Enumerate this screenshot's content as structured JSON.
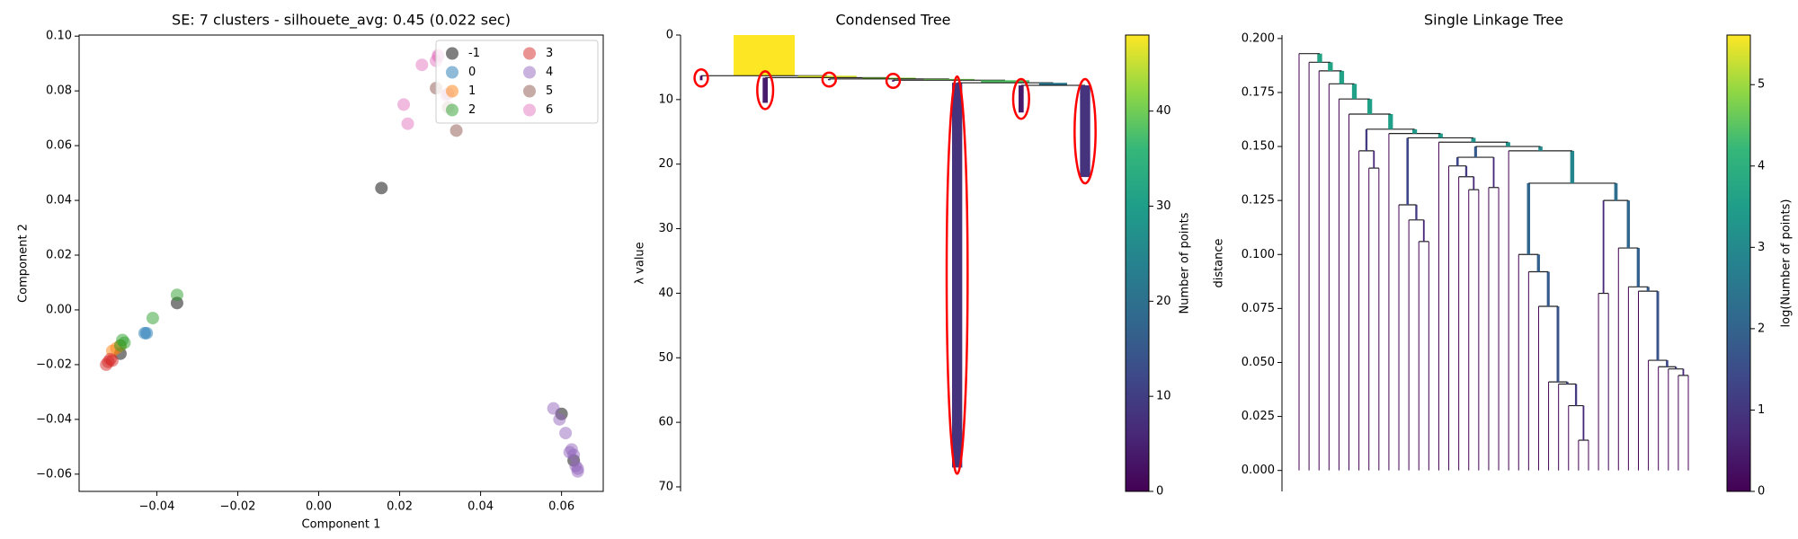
{
  "chart_data": [
    {
      "type": "scatter",
      "title": "SE: 7 clusters - silhouete_avg: 0.45 (0.022 sec)",
      "xlabel": "Component 1",
      "ylabel": "Component 2",
      "xlim": [
        -0.0592,
        0.0703
      ],
      "ylim": [
        -0.0663,
        0.1004
      ],
      "xticks": [
        {
          "value": -0.04,
          "label": "−0.04"
        },
        {
          "value": -0.02,
          "label": "−0.02"
        },
        {
          "value": 0,
          "label": "0.00"
        },
        {
          "value": 0.02,
          "label": "0.02"
        },
        {
          "value": 0.04,
          "label": "0.04"
        },
        {
          "value": 0.06,
          "label": "0.06"
        }
      ],
      "yticks": [
        {
          "value": -0.06,
          "label": "−0.06"
        },
        {
          "value": -0.04,
          "label": "−0.04"
        },
        {
          "value": -0.02,
          "label": "−0.02"
        },
        {
          "value": 0,
          "label": "0.00"
        },
        {
          "value": 0.02,
          "label": "0.02"
        },
        {
          "value": 0.04,
          "label": "0.04"
        },
        {
          "value": 0.06,
          "label": "0.06"
        },
        {
          "value": 0.08,
          "label": "0.08"
        },
        {
          "value": 0.1,
          "label": "0.10"
        }
      ],
      "legend": "upper right",
      "legend_columns": 2,
      "series": [
        {
          "name": "-1",
          "color": "#000000",
          "x": [
            0.0155,
            -0.035,
            0.06,
            0.063,
            -0.049
          ],
          "y": [
            0.0445,
            0.0025,
            -0.038,
            -0.055,
            -0.016
          ]
        },
        {
          "name": "0",
          "color": "#1f77b4",
          "x": [
            -0.043,
            -0.0425
          ],
          "y": [
            -0.0085,
            -0.0085
          ]
        },
        {
          "name": "1",
          "color": "#ff7f0e",
          "x": [
            -0.05,
            -0.049,
            -0.051
          ],
          "y": [
            -0.014,
            -0.013,
            -0.015
          ]
        },
        {
          "name": "2",
          "color": "#2ca02c",
          "x": [
            -0.035,
            -0.041,
            -0.048,
            -0.049,
            -0.0485
          ],
          "y": [
            0.0055,
            -0.003,
            -0.012,
            -0.013,
            -0.011
          ]
        },
        {
          "name": "3",
          "color": "#d62728",
          "x": [
            -0.0525,
            -0.052,
            -0.051,
            -0.0515
          ],
          "y": [
            -0.02,
            -0.019,
            -0.0185,
            -0.018
          ]
        },
        {
          "name": "4",
          "color": "#9467bd",
          "x": [
            0.058,
            0.0595,
            0.061,
            0.062,
            0.0625,
            0.063,
            0.064,
            0.0635,
            0.064
          ],
          "y": [
            -0.036,
            -0.04,
            -0.045,
            -0.052,
            -0.051,
            -0.053,
            -0.058,
            -0.057,
            -0.059
          ]
        },
        {
          "name": "5",
          "color": "#8c564b",
          "x": [
            0.029,
            0.032,
            0.034,
            0.032
          ],
          "y": [
            0.081,
            0.074,
            0.0655,
            0.079
          ]
        },
        {
          "name": "6",
          "color": "#e377c2",
          "x": [
            0.0255,
            0.0295,
            0.029,
            0.0295,
            0.021,
            0.022,
            0.0315
          ],
          "y": [
            0.0895,
            0.0925,
            0.091,
            0.093,
            0.075,
            0.068,
            0.0785
          ]
        }
      ]
    },
    {
      "type": "condensed_tree",
      "title": "Condensed Tree",
      "ylabel": "λ value",
      "ylim": [
        0,
        70.7
      ],
      "inverted": true,
      "yticks": [
        0,
        10,
        20,
        30,
        40,
        50,
        60,
        70
      ],
      "selection_color": "#ff0000",
      "clusters": [
        {
          "parent": null,
          "birth": 0,
          "death": 6.3,
          "size": 48,
          "selected": false
        },
        {
          "parent": 0,
          "birth": 6.3,
          "death": 7.0,
          "size": 2,
          "selected": true
        },
        {
          "parent": 0,
          "birth": 6.3,
          "death": 6.6,
          "size": 46,
          "selected": false
        },
        {
          "parent": 2,
          "birth": 6.6,
          "death": 10.5,
          "size": 4,
          "selected": true
        },
        {
          "parent": 2,
          "birth": 6.6,
          "death": 6.8,
          "size": 42,
          "selected": false
        },
        {
          "parent": 4,
          "birth": 6.8,
          "death": 7.0,
          "size": 2,
          "selected": true
        },
        {
          "parent": 4,
          "birth": 6.8,
          "death": 7.0,
          "size": 40,
          "selected": false
        },
        {
          "parent": 6,
          "birth": 7.0,
          "death": 7.2,
          "size": 2,
          "selected": true
        },
        {
          "parent": 6,
          "birth": 7.0,
          "death": 7.4,
          "size": 38,
          "selected": false
        },
        {
          "parent": 8,
          "birth": 7.4,
          "death": 67,
          "size": 8,
          "selected": true
        },
        {
          "parent": 8,
          "birth": 7.4,
          "death": 7.8,
          "size": 22,
          "selected": false
        },
        {
          "parent": 10,
          "birth": 7.8,
          "death": 12,
          "size": 4,
          "selected": true
        },
        {
          "parent": 10,
          "birth": 7.8,
          "death": 22,
          "size": 8,
          "selected": true
        }
      ],
      "colorbar": {
        "label": "Number of points",
        "lim": [
          0,
          48
        ],
        "ticks": [
          0,
          10,
          20,
          30,
          40
        ]
      }
    },
    {
      "type": "single_linkage_tree",
      "title": "Single Linkage Tree",
      "ylabel": "distance",
      "ylim": [
        -0.0097,
        0.2016
      ],
      "yticks": [
        {
          "value": 0,
          "label": "0.000"
        },
        {
          "value": 0.025,
          "label": "0.025"
        },
        {
          "value": 0.05,
          "label": "0.050"
        },
        {
          "value": 0.075,
          "label": "0.075"
        },
        {
          "value": 0.1,
          "label": "0.100"
        },
        {
          "value": 0.125,
          "label": "0.125"
        },
        {
          "value": 0.15,
          "label": "0.150"
        },
        {
          "value": 0.175,
          "label": "0.175"
        },
        {
          "value": 0.2,
          "label": "0.200"
        }
      ],
      "linkage": [
        [
          28,
          29,
          0.014,
          2
        ],
        [
          27,
          40,
          0.03,
          3
        ],
        [
          26,
          41,
          0.04,
          4
        ],
        [
          25,
          42,
          0.041,
          5
        ],
        [
          38,
          39,
          0.044,
          2
        ],
        [
          37,
          44,
          0.047,
          3
        ],
        [
          36,
          45,
          0.048,
          4
        ],
        [
          35,
          46,
          0.051,
          5
        ],
        [
          24,
          43,
          0.076,
          6
        ],
        [
          30,
          31,
          0.082,
          2
        ],
        [
          34,
          47,
          0.083,
          6
        ],
        [
          33,
          50,
          0.085,
          7
        ],
        [
          23,
          48,
          0.092,
          7
        ],
        [
          22,
          52,
          0.1,
          8
        ],
        [
          32,
          51,
          0.103,
          8
        ],
        [
          12,
          13,
          0.106,
          2
        ],
        [
          11,
          55,
          0.116,
          3
        ],
        [
          10,
          56,
          0.123,
          4
        ],
        [
          49,
          54,
          0.125,
          10
        ],
        [
          17,
          18,
          0.13,
          2
        ],
        [
          19,
          20,
          0.131,
          2
        ],
        [
          53,
          58,
          0.133,
          18
        ],
        [
          16,
          59,
          0.136,
          3
        ],
        [
          7,
          8,
          0.14,
          2
        ],
        [
          15,
          62,
          0.141,
          4
        ],
        [
          64,
          60,
          0.145,
          6
        ],
        [
          6,
          63,
          0.148,
          3
        ],
        [
          21,
          61,
          0.148,
          19
        ],
        [
          65,
          67,
          0.15,
          25
        ],
        [
          14,
          68,
          0.152,
          26
        ],
        [
          57,
          69,
          0.154,
          30
        ],
        [
          9,
          70,
          0.156,
          31
        ],
        [
          66,
          71,
          0.158,
          34
        ],
        [
          5,
          72,
          0.165,
          35
        ],
        [
          4,
          73,
          0.172,
          36
        ],
        [
          3,
          74,
          0.179,
          37
        ],
        [
          2,
          75,
          0.185,
          38
        ],
        [
          1,
          76,
          0.189,
          39
        ],
        [
          0,
          77,
          0.193,
          40
        ]
      ],
      "colorbar": {
        "label": "log(Number of points)",
        "lim": [
          0,
          5.61
        ],
        "ticks": [
          0,
          1,
          2,
          3,
          4,
          5
        ]
      }
    }
  ]
}
